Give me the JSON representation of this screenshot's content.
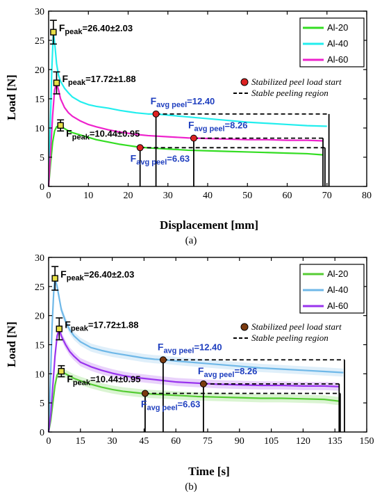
{
  "chart_data": [
    {
      "type": "line",
      "panel_label": "(a)",
      "xlabel": "Displacement [mm]",
      "ylabel": "Load [N]",
      "xlim": [
        0,
        80
      ],
      "ylim": [
        0,
        30
      ],
      "xticks": [
        0,
        10,
        20,
        30,
        40,
        50,
        60,
        70,
        80
      ],
      "yticks": [
        0,
        5,
        10,
        15,
        20,
        25,
        30
      ],
      "legend_position": "top-right",
      "series": [
        {
          "name": "Al-20",
          "color": "#33dd22",
          "x": [
            0,
            0.5,
            1,
            1.5,
            2,
            2.5,
            3,
            4,
            5,
            6,
            8,
            10,
            12,
            15,
            18,
            20,
            22,
            25,
            30,
            35,
            40,
            45,
            50,
            55,
            60,
            65,
            69
          ],
          "y": [
            0,
            4,
            7.5,
            9.5,
            10.2,
            10.4,
            10.3,
            9.9,
            9.5,
            9.2,
            8.8,
            8.4,
            8.0,
            7.6,
            7.2,
            7.0,
            6.8,
            6.6,
            6.4,
            6.2,
            6.1,
            6.0,
            5.9,
            5.8,
            5.7,
            5.6,
            5.4
          ]
        },
        {
          "name": "Al-40",
          "color": "#22eeee",
          "x": [
            0,
            0.4,
            0.8,
            1.2,
            1.6,
            2,
            2.5,
            3,
            4,
            5,
            6,
            8,
            10,
            12,
            15,
            18,
            20,
            22,
            25,
            27,
            30,
            35,
            40,
            45,
            50,
            55,
            60,
            65,
            70
          ],
          "y": [
            0,
            10,
            20,
            26.4,
            24,
            21,
            19,
            18,
            16.8,
            16,
            15.3,
            14.5,
            14,
            13.7,
            13.4,
            13,
            12.8,
            12.6,
            12.4,
            12.4,
            12.2,
            11.9,
            11.6,
            11.3,
            11,
            10.8,
            10.6,
            10.4,
            10.3
          ]
        },
        {
          "name": "Al-60",
          "color": "#ee22cc",
          "x": [
            0,
            0.5,
            1,
            1.5,
            2,
            2.5,
            3,
            4,
            5,
            6,
            8,
            10,
            12,
            15,
            18,
            20,
            22,
            25,
            30,
            35,
            40,
            45,
            50,
            55,
            60,
            65,
            69
          ],
          "y": [
            0,
            6,
            12,
            16.5,
            17.7,
            16.5,
            15,
            13.5,
            12.6,
            12,
            11.2,
            10.6,
            10.2,
            9.7,
            9.3,
            9.1,
            8.9,
            8.7,
            8.5,
            8.3,
            8.2,
            8.1,
            8.0,
            8.0,
            7.9,
            7.9,
            7.8
          ]
        }
      ],
      "error_bars": [
        {
          "series": "Al-20",
          "x": 3,
          "y": 10.44,
          "err": 0.95
        },
        {
          "series": "Al-40",
          "x": 1.2,
          "y": 26.4,
          "err": 2.03
        },
        {
          "series": "Al-60",
          "x": 2,
          "y": 17.72,
          "err": 1.88
        }
      ],
      "stabilized_points": [
        {
          "series": "Al-20",
          "x": 23,
          "y": 6.63,
          "end_x": 69.5
        },
        {
          "series": "Al-40",
          "x": 27,
          "y": 12.4,
          "end_x": 70.5
        },
        {
          "series": "Al-60",
          "x": 36.5,
          "y": 8.26,
          "end_x": 69
        }
      ],
      "annotations": {
        "peak_label": "F",
        "peak_sub": "peak",
        "peaks": [
          "=26.40±2.03",
          "=17.72±1.88",
          "=10.44±0.95"
        ],
        "avg_label": "F",
        "avg_sub": "avg peel",
        "avgs": [
          "=12.40",
          "=8.26",
          "=6.63"
        ]
      },
      "legend_markers": {
        "stabilized": "Stabilized peel load start",
        "stable_region": "Stable peeling region"
      }
    },
    {
      "type": "line",
      "panel_label": "(b)",
      "xlabel": "Time [s]",
      "ylabel": "Load [N]",
      "xlim": [
        0,
        150
      ],
      "ylim": [
        0,
        30
      ],
      "xticks": [
        0,
        15,
        30,
        45,
        60,
        75,
        90,
        105,
        120,
        135,
        150
      ],
      "yticks": [
        0,
        5,
        10,
        15,
        20,
        25,
        30
      ],
      "legend_position": "top-right",
      "series": [
        {
          "name": "Al-20",
          "color": "#55cc33",
          "x": [
            0,
            1,
            2,
            3,
            4,
            5,
            6,
            8,
            10,
            12,
            15,
            20,
            25,
            30,
            35,
            40,
            45,
            50,
            60,
            70,
            80,
            90,
            100,
            110,
            120,
            130,
            137
          ],
          "y": [
            0,
            2,
            5,
            8,
            9.8,
            10.3,
            10.4,
            10.0,
            9.6,
            9.2,
            8.8,
            8.2,
            7.7,
            7.3,
            7.0,
            6.8,
            6.6,
            6.5,
            6.3,
            6.1,
            6.0,
            5.9,
            5.8,
            5.8,
            5.7,
            5.6,
            5.3
          ]
        },
        {
          "name": "Al-40",
          "color": "#6fb8e8",
          "x": [
            0,
            0.8,
            1.6,
            2.4,
            3,
            4,
            5,
            6,
            8,
            10,
            12,
            15,
            20,
            25,
            30,
            35,
            40,
            45,
            50,
            55,
            60,
            70,
            80,
            90,
            100,
            110,
            120,
            130,
            139
          ],
          "y": [
            0,
            8,
            18,
            24,
            26.4,
            25,
            23,
            21,
            19,
            17.5,
            16.5,
            15.5,
            14.5,
            14,
            13.6,
            13.3,
            13,
            12.7,
            12.5,
            12.4,
            12.2,
            11.9,
            11.6,
            11.3,
            11,
            10.8,
            10.6,
            10.4,
            10.2
          ]
        },
        {
          "name": "Al-60",
          "color": "#9933ee",
          "x": [
            0,
            1,
            2,
            3,
            4,
            5,
            6,
            8,
            10,
            12,
            15,
            20,
            25,
            30,
            35,
            40,
            45,
            50,
            55,
            60,
            70,
            75,
            80,
            90,
            100,
            110,
            120,
            130,
            137
          ],
          "y": [
            0,
            3,
            8,
            13,
            16.5,
            17.7,
            16.5,
            15,
            13.8,
            13,
            12,
            11.2,
            10.6,
            10.1,
            9.7,
            9.4,
            9.2,
            9.0,
            8.8,
            8.6,
            8.4,
            8.3,
            8.2,
            8.1,
            8.0,
            8.0,
            7.9,
            7.9,
            7.8
          ]
        }
      ],
      "error_bars": [
        {
          "series": "Al-20",
          "x": 6,
          "y": 10.44,
          "err": 0.95
        },
        {
          "series": "Al-40",
          "x": 3,
          "y": 26.4,
          "err": 2.03
        },
        {
          "series": "Al-60",
          "x": 5,
          "y": 17.72,
          "err": 1.88
        }
      ],
      "stabilized_points": [
        {
          "series": "Al-20",
          "x": 45.5,
          "y": 6.63,
          "end_x": 137.5
        },
        {
          "series": "Al-40",
          "x": 54,
          "y": 12.4,
          "end_x": 139.5
        },
        {
          "series": "Al-60",
          "x": 73,
          "y": 8.26,
          "end_x": 137
        }
      ],
      "annotations": {
        "peak_label": "F",
        "peak_sub": "peak",
        "peaks": [
          "=26.40±2.03",
          "=17.72±1.88",
          "=10.44±0.95"
        ],
        "avg_label": "F",
        "avg_sub": "avg peel",
        "avgs": [
          "=12.40",
          "=8.26",
          "=6.63"
        ]
      },
      "legend_markers": {
        "stabilized": "Stabilized peel load start",
        "stable_region": "Stable peeling region"
      }
    }
  ],
  "marker_colors": {
    "a": "#dd2222",
    "b": "#7a3a10"
  }
}
